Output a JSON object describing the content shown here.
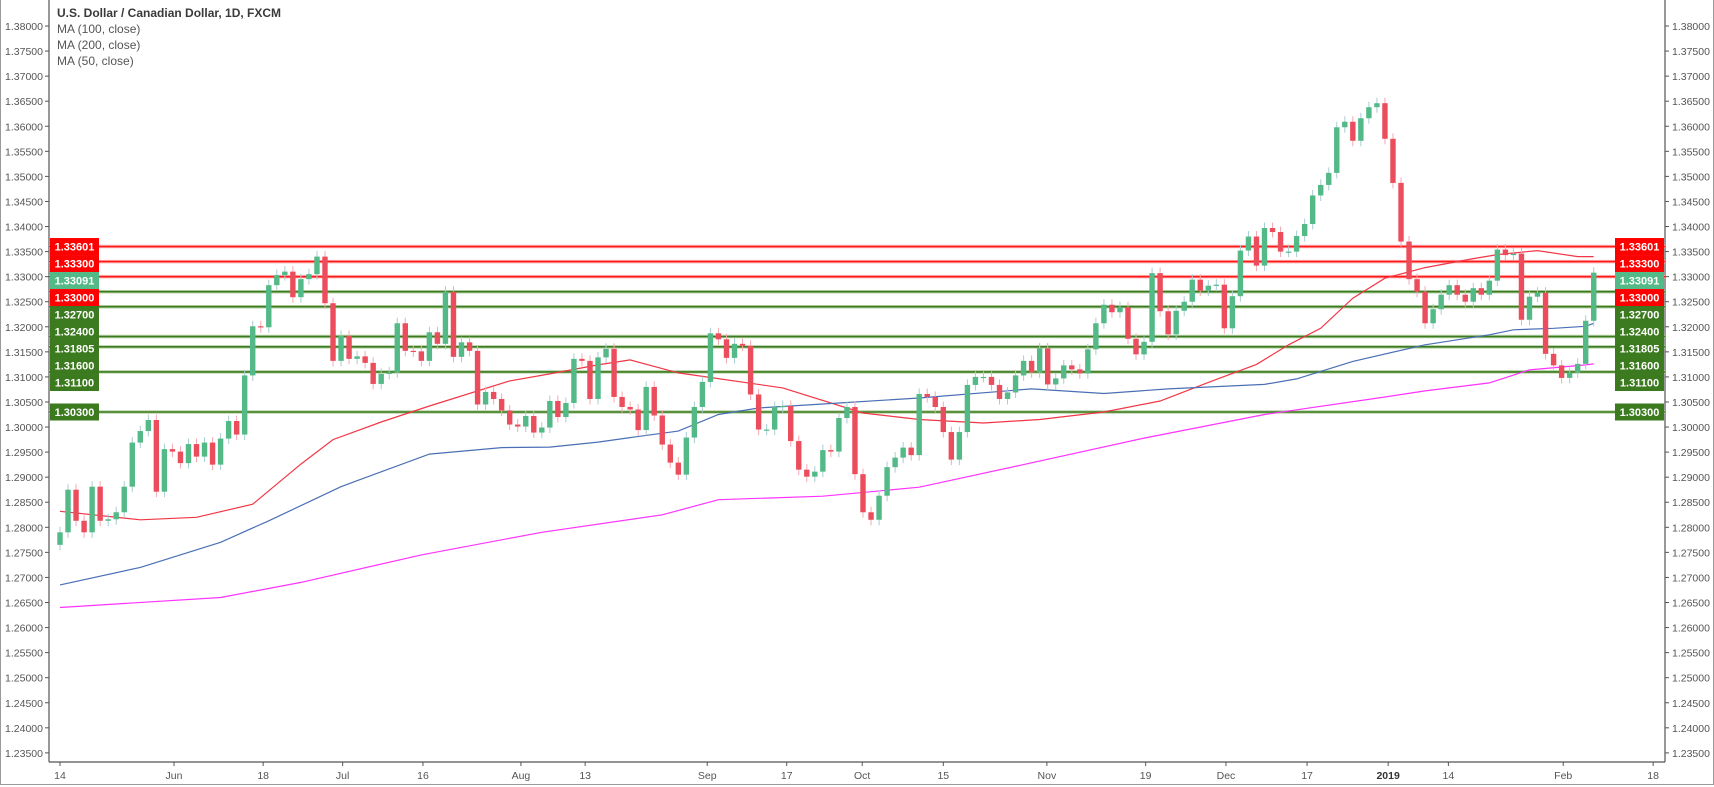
{
  "legend": {
    "title": "U.S. Dollar / Canadian Dollar, 1D, FXCM",
    "studies": [
      "MA (100, close)",
      "MA (200, close)",
      "MA (50, close)"
    ]
  },
  "colors": {
    "up": "#53b987",
    "down": "#eb4d5c",
    "up_wick": "#a9cdd3",
    "down_wick": "#f5a9b1",
    "ma50": "#f23645",
    "ma100": "#4a6fb5",
    "ma200": "#ff33ff",
    "support": "#3b7a1e",
    "resistance": "#ff1a1a",
    "last": "#53b987",
    "axis_text": "#555555"
  },
  "chart_data": {
    "type": "candlestick",
    "title": "U.S. Dollar / Canadian Dollar, 1D, FXCM",
    "ylim": [
      1.235,
      1.38
    ],
    "y_ticks": [
      "1.38000",
      "1.37500",
      "1.37000",
      "1.36500",
      "1.36000",
      "1.35500",
      "1.35000",
      "1.34500",
      "1.34000",
      "1.33500",
      "1.33000",
      "1.32500",
      "1.32000",
      "1.31500",
      "1.31000",
      "1.30500",
      "1.30000",
      "1.29500",
      "1.29000",
      "1.28500",
      "1.28000",
      "1.27500",
      "1.27000",
      "1.26500",
      "1.26000",
      "1.25500",
      "1.25000",
      "1.24500",
      "1.24000",
      "1.23500"
    ],
    "x_range_bars": [
      -1,
      199
    ],
    "x_ticks": [
      {
        "label": "14",
        "at": 0
      },
      {
        "label": "Jun",
        "at": 14.2
      },
      {
        "label": "18",
        "at": 25.3
      },
      {
        "label": "Jul",
        "at": 35.2
      },
      {
        "label": "16",
        "at": 45.2
      },
      {
        "label": "Aug",
        "at": 57.4
      },
      {
        "label": "13",
        "at": 65.4
      },
      {
        "label": "Sep",
        "at": 80.6
      },
      {
        "label": "17",
        "at": 90.5
      },
      {
        "label": "Oct",
        "at": 99.9
      },
      {
        "label": "15",
        "at": 110
      },
      {
        "label": "Nov",
        "at": 122.9
      },
      {
        "label": "19",
        "at": 135.2
      },
      {
        "label": "Dec",
        "at": 145.2
      },
      {
        "label": "17",
        "at": 155.3
      },
      {
        "label": "2019",
        "at": 165.4,
        "bold": true
      },
      {
        "label": "14",
        "at": 172.9
      },
      {
        "label": "Feb",
        "at": 187.2
      },
      {
        "label": "18",
        "at": 198.4
      }
    ],
    "first_open": 1.2765,
    "wick_pad": 0.0011,
    "closes": [
      1.279,
      1.2875,
      1.2813,
      1.279,
      1.2881,
      1.2813,
      1.2816,
      1.283,
      1.2881,
      1.2969,
      1.2992,
      1.3014,
      1.2871,
      1.2956,
      1.2951,
      1.2928,
      1.2966,
      1.2941,
      1.2969,
      1.2925,
      1.2977,
      1.3012,
      1.2985,
      1.3103,
      1.3201,
      1.3199,
      1.3283,
      1.3303,
      1.331,
      1.3259,
      1.3295,
      1.3305,
      1.334,
      1.3247,
      1.3132,
      1.3182,
      1.3136,
      1.3141,
      1.3128,
      1.3086,
      1.3106,
      1.3109,
      1.3207,
      1.3152,
      1.3151,
      1.3132,
      1.3189,
      1.3166,
      1.327,
      1.314,
      1.3169,
      1.3152,
      1.3045,
      1.307,
      1.3056,
      1.3033,
      1.3005,
      1.3001,
      1.3022,
      1.2989,
      1.2999,
      1.3052,
      1.302,
      1.3048,
      1.3136,
      1.3132,
      1.3056,
      1.3139,
      1.3156,
      1.306,
      1.304,
      1.3035,
      1.2994,
      1.308,
      1.3023,
      1.2965,
      1.2929,
      1.2905,
      1.2979,
      1.304,
      1.309,
      1.3187,
      1.3175,
      1.3138,
      1.3166,
      1.3162,
      1.3065,
      1.2995,
      1.2995,
      1.304,
      1.3042,
      1.2972,
      1.2915,
      1.2901,
      1.2911,
      1.2954,
      1.2951,
      1.3018,
      1.304,
      1.2906,
      1.283,
      1.2815,
      1.2863,
      1.292,
      1.2939,
      1.2959,
      1.2944,
      1.3066,
      1.306,
      1.304,
      1.299,
      1.2935,
      1.299,
      1.3084,
      1.31,
      1.31,
      1.3084,
      1.3056,
      1.3069,
      1.3103,
      1.3132,
      1.3109,
      1.3157,
      1.3085,
      1.3097,
      1.3123,
      1.3115,
      1.3107,
      1.3155,
      1.3207,
      1.3244,
      1.3229,
      1.3239,
      1.3176,
      1.3145,
      1.317,
      1.3307,
      1.3231,
      1.3185,
      1.3232,
      1.325,
      1.3294,
      1.3272,
      1.3282,
      1.3284,
      1.3197,
      1.3261,
      1.3352,
      1.338,
      1.3322,
      1.3397,
      1.3389,
      1.335,
      1.335,
      1.3381,
      1.3405,
      1.3462,
      1.3483,
      1.3507,
      1.3598,
      1.3609,
      1.3571,
      1.3616,
      1.3638,
      1.3646,
      1.3575,
      1.3487,
      1.337,
      1.3295,
      1.327,
      1.3207,
      1.3235,
      1.3264,
      1.3283,
      1.3264,
      1.325,
      1.3277,
      1.3264,
      1.3292,
      1.3354,
      1.3343,
      1.3346,
      1.3214,
      1.326,
      1.3268,
      1.3146,
      1.3123,
      1.3098,
      1.3109,
      1.3126,
      1.3212,
      1.3308
    ],
    "series": [
      {
        "name": "MA (50, close)",
        "color_key": "ma50",
        "points": [
          [
            0,
            1.2832
          ],
          [
            10,
            1.2815
          ],
          [
            17,
            1.282
          ],
          [
            24,
            1.2846
          ],
          [
            30,
            1.2926
          ],
          [
            34,
            1.2975
          ],
          [
            40,
            1.301
          ],
          [
            46,
            1.3042
          ],
          [
            56,
            1.3092
          ],
          [
            61,
            1.3106
          ],
          [
            67,
            1.3124
          ],
          [
            71,
            1.3134
          ],
          [
            77,
            1.3108
          ],
          [
            90,
            1.3078
          ],
          [
            100,
            1.3028
          ],
          [
            107,
            1.3015
          ],
          [
            115,
            1.3008
          ],
          [
            122,
            1.3015
          ],
          [
            130,
            1.303
          ],
          [
            137,
            1.3052
          ],
          [
            144,
            1.3095
          ],
          [
            149,
            1.3125
          ],
          [
            153,
            1.3164
          ],
          [
            157,
            1.3197
          ],
          [
            161,
            1.3257
          ],
          [
            165,
            1.3297
          ],
          [
            170,
            1.3318
          ],
          [
            176,
            1.3336
          ],
          [
            179,
            1.3344
          ],
          [
            184,
            1.3352
          ],
          [
            189,
            1.334
          ],
          [
            191,
            1.334
          ]
        ]
      },
      {
        "name": "MA (100, close)",
        "color_key": "ma100",
        "points": [
          [
            0,
            1.2685
          ],
          [
            10,
            1.272
          ],
          [
            20,
            1.277
          ],
          [
            26,
            1.2813
          ],
          [
            35,
            1.2881
          ],
          [
            37,
            1.2893
          ],
          [
            46,
            1.2946
          ],
          [
            55,
            1.2959
          ],
          [
            61,
            1.296
          ],
          [
            67,
            1.297
          ],
          [
            71,
            1.2979
          ],
          [
            77,
            1.2992
          ],
          [
            82,
            1.3025
          ],
          [
            87,
            1.3038
          ],
          [
            97,
            1.3048
          ],
          [
            107,
            1.3058
          ],
          [
            121,
            1.3076
          ],
          [
            130,
            1.3067
          ],
          [
            138,
            1.3076
          ],
          [
            150,
            1.3085
          ],
          [
            154,
            1.3096
          ],
          [
            161,
            1.3131
          ],
          [
            170,
            1.3164
          ],
          [
            178,
            1.3184
          ],
          [
            181,
            1.3194
          ],
          [
            186,
            1.3197
          ],
          [
            190,
            1.3201
          ],
          [
            191,
            1.3207
          ]
        ]
      },
      {
        "name": "MA (200, close)",
        "color_key": "ma200",
        "points": [
          [
            0,
            1.264
          ],
          [
            20,
            1.266
          ],
          [
            30,
            1.269
          ],
          [
            45,
            1.2745
          ],
          [
            60,
            1.279
          ],
          [
            75,
            1.2825
          ],
          [
            82,
            1.2855
          ],
          [
            95,
            1.2862
          ],
          [
            107,
            1.288
          ],
          [
            120,
            1.2925
          ],
          [
            135,
            1.2978
          ],
          [
            150,
            1.3025
          ],
          [
            165,
            1.306
          ],
          [
            170,
            1.3072
          ],
          [
            178,
            1.3088
          ],
          [
            183,
            1.3114
          ],
          [
            190,
            1.3124
          ],
          [
            191,
            1.3126
          ]
        ]
      }
    ],
    "levels": [
      {
        "price": 1.33601,
        "label": "1.33601",
        "kind": "resistance"
      },
      {
        "price": 1.333,
        "label": "1.33300",
        "kind": "resistance"
      },
      {
        "price": 1.33091,
        "label": "1.33091",
        "kind": "last",
        "line": false
      },
      {
        "price": 1.33,
        "label": "1.33000",
        "kind": "resistance"
      },
      {
        "price": 1.327,
        "label": "1.32700",
        "kind": "support"
      },
      {
        "price": 1.324,
        "label": "1.32400",
        "kind": "support"
      },
      {
        "price": 1.31805,
        "label": "1.31805",
        "kind": "support"
      },
      {
        "price": 1.316,
        "label": "1.31600",
        "kind": "support"
      },
      {
        "price": 1.311,
        "label": "1.31100",
        "kind": "support"
      },
      {
        "price": 1.303,
        "label": "1.30300",
        "kind": "support"
      }
    ],
    "grid": false,
    "legend_position": "top-left"
  }
}
